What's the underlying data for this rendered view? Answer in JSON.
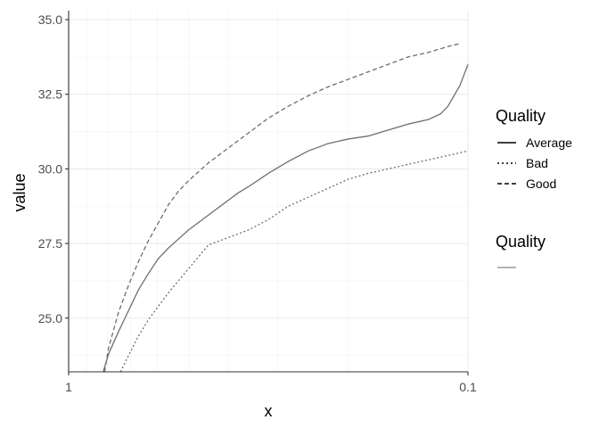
{
  "chart_data": {
    "type": "line",
    "title": "",
    "xlabel": "x",
    "ylabel": "value",
    "x_scale": "log-reversed",
    "xlim": [
      1,
      0.1
    ],
    "ylim": [
      23.2,
      35.3
    ],
    "x_ticks": [
      1,
      0.1
    ],
    "x_tick_labels": [
      "1",
      "0.1"
    ],
    "y_ticks": [
      25.0,
      27.5,
      30.0,
      32.5,
      35.0
    ],
    "y_tick_labels": [
      "25.0",
      "27.5",
      "30.0",
      "32.5",
      "35.0"
    ],
    "grid": true,
    "line_color": "#6e6e6e",
    "series": [
      {
        "name": "Average",
        "linetype": "solid",
        "x": [
          0.8193,
          0.7943,
          0.7499,
          0.7079,
          0.6683,
          0.631,
          0.5957,
          0.5623,
          0.5309,
          0.5012,
          0.4732,
          0.4467,
          0.4217,
          0.3981,
          0.3758,
          0.3548,
          0.3162,
          0.2818,
          0.2512,
          0.2239,
          0.1995,
          0.1778,
          0.1585,
          0.1413,
          0.1259,
          0.1169,
          0.1122,
          0.1047,
          0.1
        ],
        "y": [
          23.2,
          23.8,
          24.55,
          25.25,
          25.95,
          26.5,
          27.0,
          27.35,
          27.65,
          27.95,
          28.2,
          28.45,
          28.7,
          28.95,
          29.2,
          29.4,
          29.85,
          30.25,
          30.6,
          30.85,
          31.0,
          31.1,
          31.3,
          31.5,
          31.65,
          31.85,
          32.1,
          32.8,
          33.5
        ]
      },
      {
        "name": "Bad",
        "linetype": "dotted",
        "x": [
          0.7413,
          0.7079,
          0.6683,
          0.631,
          0.5957,
          0.5623,
          0.5309,
          0.5012,
          0.4467,
          0.3981,
          0.3548,
          0.3162,
          0.2818,
          0.2512,
          0.2239,
          0.1995,
          0.1778,
          0.1585,
          0.1413,
          0.1259,
          0.1122,
          0.1
        ],
        "y": [
          23.2,
          23.75,
          24.4,
          24.95,
          25.4,
          25.85,
          26.25,
          26.65,
          27.45,
          27.7,
          27.95,
          28.3,
          28.75,
          29.05,
          29.35,
          29.65,
          29.85,
          30.0,
          30.15,
          30.3,
          30.45,
          30.6
        ]
      },
      {
        "name": "Good",
        "linetype": "dashed",
        "x": [
          0.8128,
          0.7943,
          0.7499,
          0.7079,
          0.6683,
          0.631,
          0.5957,
          0.5623,
          0.5309,
          0.5012,
          0.4467,
          0.3981,
          0.3548,
          0.3162,
          0.2818,
          0.2512,
          0.2239,
          0.1995,
          0.1778,
          0.1585,
          0.1413,
          0.1259,
          0.1122,
          0.1047
        ],
        "y": [
          23.2,
          24.0,
          25.2,
          26.1,
          26.9,
          27.6,
          28.2,
          28.8,
          29.25,
          29.6,
          30.2,
          30.7,
          31.2,
          31.7,
          32.1,
          32.45,
          32.75,
          33.0,
          33.25,
          33.5,
          33.75,
          33.9,
          34.1,
          34.2
        ]
      }
    ],
    "legends": [
      {
        "title": "Quality",
        "entries": [
          {
            "label": "Average",
            "linetype": "solid"
          },
          {
            "label": "Bad",
            "linetype": "dotted"
          },
          {
            "label": "Good",
            "linetype": "dashed"
          }
        ]
      },
      {
        "title": "Quality",
        "entries": [
          {
            "label": "",
            "linetype": "solid",
            "color": "#9a9a9a"
          }
        ]
      }
    ],
    "legend_position": "right"
  }
}
